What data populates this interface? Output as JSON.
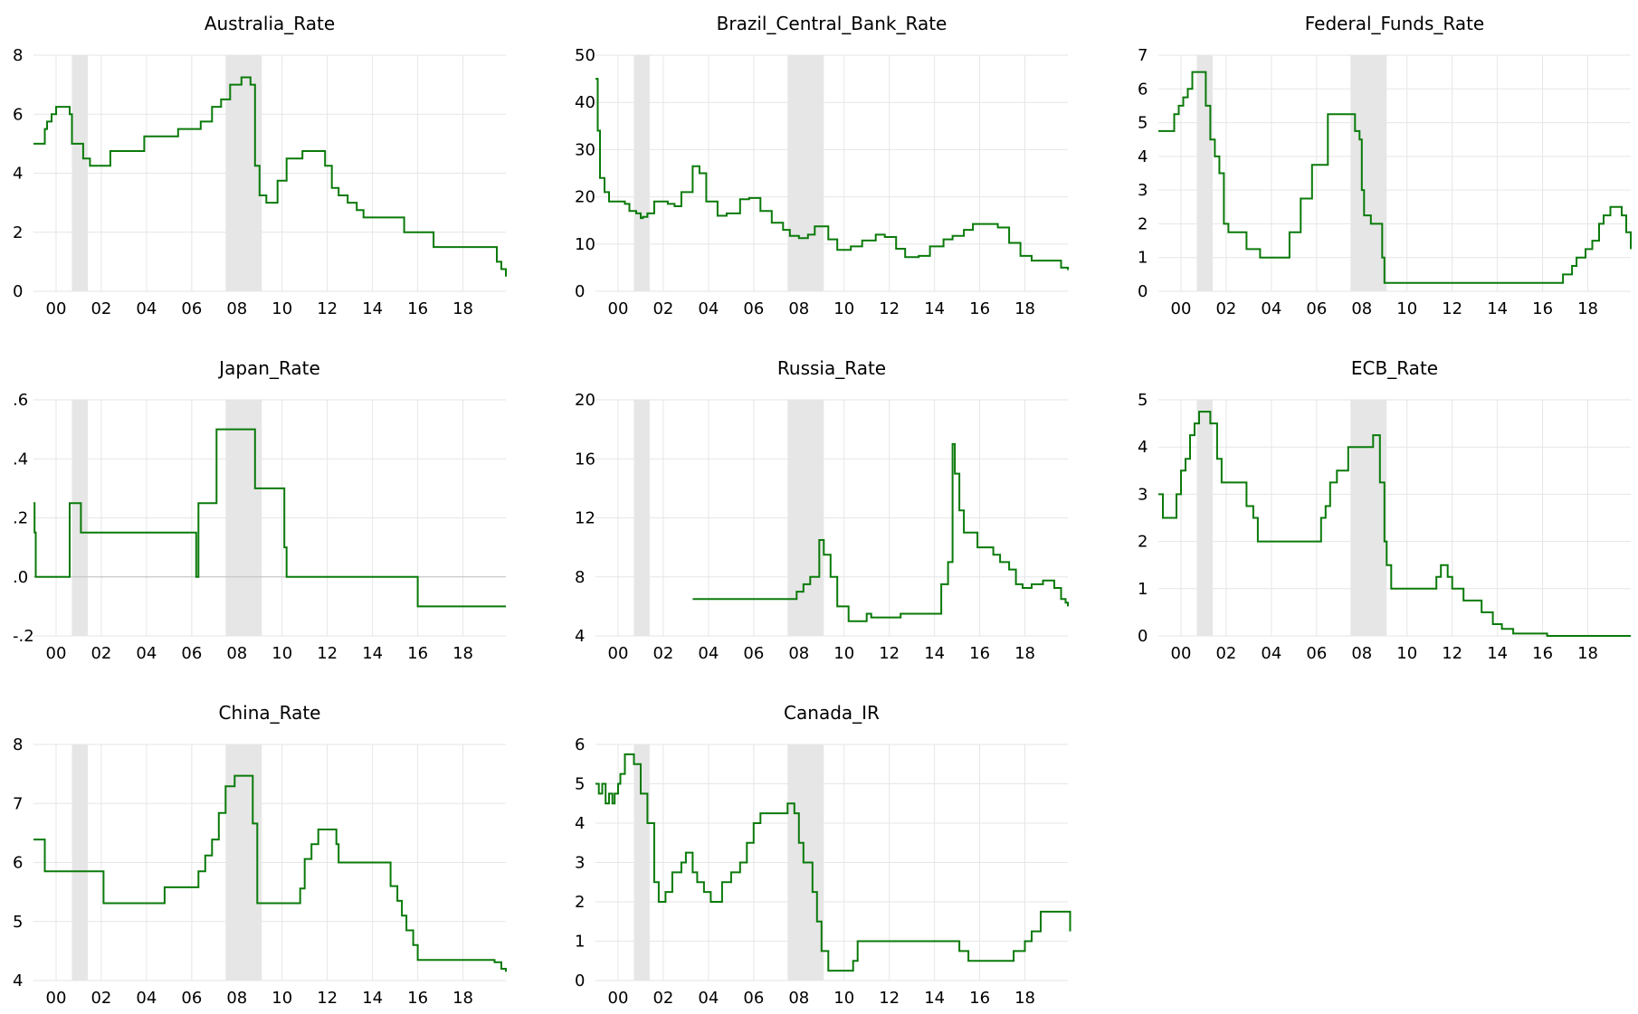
{
  "chart_data": [
    {
      "type": "line",
      "title": "Australia_Rate",
      "xlabel": "",
      "ylabel": "",
      "xlim": [
        1999.0,
        2019.9
      ],
      "ylim": [
        0,
        8
      ],
      "yticks": [
        0,
        2,
        4,
        6,
        8
      ],
      "ytick_labels": [
        "0",
        "2",
        "4",
        "6",
        "8"
      ],
      "xticks": [
        2000,
        2002,
        2004,
        2006,
        2008,
        2010,
        2012,
        2014,
        2016,
        2018
      ],
      "xtick_labels": [
        "00",
        "02",
        "04",
        "06",
        "08",
        "10",
        "12",
        "14",
        "16",
        "18"
      ],
      "recessions": [
        [
          2000.7,
          2001.4
        ],
        [
          2007.5,
          2009.1
        ]
      ],
      "series": [
        {
          "x": [
            1999.0,
            1999.5,
            1999.6,
            1999.8,
            2000.0,
            2000.4,
            2000.6,
            2000.7,
            2001.0,
            2001.2,
            2001.5,
            2001.7,
            2002.4,
            2002.6,
            2003.6,
            2003.9,
            2005.2,
            2005.4,
            2005.9,
            2006.4,
            2006.9,
            2007.3,
            2007.7,
            2008.2,
            2008.6,
            2008.8,
            2009.0,
            2009.3,
            2009.8,
            2010.2,
            2010.9,
            2011.6,
            2011.9,
            2012.2,
            2012.5,
            2012.9,
            2013.3,
            2013.6,
            2015.1,
            2015.4,
            2016.4,
            2016.7,
            2019.3,
            2019.5,
            2019.7,
            2019.9
          ],
          "y": [
            5.0,
            5.5,
            5.75,
            6.0,
            6.25,
            6.25,
            6.0,
            5.0,
            5.0,
            4.5,
            4.25,
            4.25,
            4.75,
            4.75,
            4.75,
            5.25,
            5.25,
            5.5,
            5.5,
            5.75,
            6.25,
            6.5,
            7.0,
            7.25,
            7.0,
            4.25,
            3.25,
            3.0,
            3.75,
            4.5,
            4.75,
            4.75,
            4.25,
            3.5,
            3.25,
            3.0,
            2.75,
            2.5,
            2.5,
            2.0,
            2.0,
            1.5,
            1.5,
            1.0,
            0.75,
            0.5
          ]
        }
      ]
    },
    {
      "type": "line",
      "title": "Brazil_Central_Bank_Rate",
      "xlabel": "",
      "ylabel": "",
      "xlim": [
        1999.0,
        2019.9
      ],
      "ylim": [
        0,
        50
      ],
      "yticks": [
        0,
        10,
        20,
        30,
        40,
        50
      ],
      "ytick_labels": [
        "0",
        "10",
        "20",
        "30",
        "40",
        "50"
      ],
      "xticks": [
        2000,
        2002,
        2004,
        2006,
        2008,
        2010,
        2012,
        2014,
        2016,
        2018
      ],
      "xtick_labels": [
        "00",
        "02",
        "04",
        "06",
        "08",
        "10",
        "12",
        "14",
        "16",
        "18"
      ],
      "recessions": [
        [
          2000.7,
          2001.4
        ],
        [
          2007.5,
          2009.1
        ]
      ],
      "series": [
        {
          "x": [
            1999.0,
            1999.1,
            1999.2,
            1999.4,
            1999.6,
            2000.3,
            2000.5,
            2000.8,
            2001.0,
            2001.1,
            2001.3,
            2001.6,
            2001.9,
            2002.2,
            2002.5,
            2002.8,
            2003.3,
            2003.6,
            2003.9,
            2004.4,
            2004.8,
            2005.4,
            2005.8,
            2006.3,
            2006.8,
            2007.3,
            2007.6,
            2008.0,
            2008.4,
            2008.7,
            2009.0,
            2009.3,
            2009.7,
            2010.3,
            2010.8,
            2011.4,
            2011.8,
            2012.3,
            2012.7,
            2013.3,
            2013.8,
            2014.4,
            2014.8,
            2015.3,
            2015.7,
            2016.4,
            2016.8,
            2017.3,
            2017.8,
            2018.3,
            2019.3,
            2019.6,
            2019.9
          ],
          "y": [
            45.0,
            34.0,
            24.0,
            21.0,
            19.0,
            18.5,
            17.0,
            16.5,
            15.5,
            15.75,
            16.5,
            19.0,
            19.0,
            18.5,
            18.0,
            21.0,
            26.5,
            25.0,
            19.0,
            16.0,
            16.5,
            19.5,
            19.75,
            17.0,
            14.5,
            13.0,
            11.75,
            11.25,
            12.0,
            13.75,
            13.75,
            11.0,
            8.75,
            9.5,
            10.75,
            12.0,
            11.5,
            9.0,
            7.25,
            7.5,
            9.5,
            11.0,
            11.75,
            13.0,
            14.25,
            14.25,
            13.5,
            10.25,
            7.5,
            6.5,
            6.5,
            5.0,
            4.5
          ]
        }
      ]
    },
    {
      "type": "line",
      "title": "Federal_Funds_Rate",
      "xlabel": "",
      "ylabel": "",
      "xlim": [
        1999.0,
        2019.9
      ],
      "ylim": [
        0,
        7
      ],
      "yticks": [
        0,
        1,
        2,
        3,
        4,
        5,
        6,
        7
      ],
      "ytick_labels": [
        "0",
        "1",
        "2",
        "3",
        "4",
        "5",
        "6",
        "7"
      ],
      "xticks": [
        2000,
        2002,
        2004,
        2006,
        2008,
        2010,
        2012,
        2014,
        2016,
        2018
      ],
      "xtick_labels": [
        "00",
        "02",
        "04",
        "06",
        "08",
        "10",
        "12",
        "14",
        "16",
        "18"
      ],
      "recessions": [
        [
          2000.7,
          2001.4
        ],
        [
          2007.5,
          2009.1
        ]
      ],
      "series": [
        {
          "x": [
            1999.0,
            1999.5,
            1999.7,
            1999.9,
            2000.1,
            2000.3,
            2000.5,
            2001.0,
            2001.1,
            2001.3,
            2001.5,
            2001.7,
            2001.9,
            2002.1,
            2002.9,
            2003.5,
            2004.5,
            2004.8,
            2005.3,
            2005.8,
            2006.5,
            2007.5,
            2007.7,
            2007.9,
            2008.0,
            2008.1,
            2008.4,
            2008.9,
            2009.0,
            2015.9,
            2016.9,
            2017.3,
            2017.5,
            2017.9,
            2018.2,
            2018.5,
            2018.7,
            2019.0,
            2019.5,
            2019.7,
            2019.9
          ],
          "y": [
            4.75,
            4.75,
            5.25,
            5.5,
            5.75,
            6.0,
            6.5,
            6.5,
            5.5,
            4.5,
            4.0,
            3.5,
            2.0,
            1.75,
            1.25,
            1.0,
            1.0,
            1.75,
            2.75,
            3.75,
            5.25,
            5.25,
            4.75,
            4.5,
            3.0,
            2.25,
            2.0,
            1.0,
            0.25,
            0.25,
            0.5,
            0.75,
            1.0,
            1.25,
            1.5,
            2.0,
            2.25,
            2.5,
            2.25,
            1.75,
            1.25
          ]
        }
      ]
    },
    {
      "type": "line",
      "title": "Japan_Rate",
      "xlabel": "",
      "ylabel": "",
      "xlim": [
        1999.0,
        2019.9
      ],
      "ylim": [
        -0.2,
        0.6
      ],
      "yticks": [
        -0.2,
        0,
        0.2,
        0.4,
        0.6
      ],
      "ytick_labels": [
        "-.2",
        ".0",
        ".2",
        ".4",
        ".6"
      ],
      "xticks": [
        2000,
        2002,
        2004,
        2006,
        2008,
        2010,
        2012,
        2014,
        2016,
        2018
      ],
      "xtick_labels": [
        "00",
        "02",
        "04",
        "06",
        "08",
        "10",
        "12",
        "14",
        "16",
        "18"
      ],
      "recessions": [
        [
          2000.7,
          2001.4
        ],
        [
          2007.5,
          2009.1
        ]
      ],
      "series": [
        {
          "x": [
            1999.0,
            1999.05,
            1999.1,
            2000.6,
            2000.6,
            2001.1,
            2001.1,
            2006.2,
            2006.3,
            2006.9,
            2007.1,
            2008.6,
            2008.8,
            2010.1,
            2010.2,
            2015.9,
            2016.0,
            2019.9
          ],
          "y": [
            0.25,
            0.15,
            0.0,
            0.0,
            0.25,
            0.25,
            0.15,
            0.0,
            0.25,
            0.25,
            0.5,
            0.5,
            0.3,
            0.1,
            0.0,
            0.0,
            -0.1,
            -0.1
          ]
        }
      ]
    },
    {
      "type": "line",
      "title": "Russia_Rate",
      "xlabel": "",
      "ylabel": "",
      "xlim": [
        1999.0,
        2019.9
      ],
      "ylim": [
        4,
        20
      ],
      "yticks": [
        4,
        8,
        12,
        16,
        20
      ],
      "ytick_labels": [
        "4",
        "8",
        "12",
        "16",
        "20"
      ],
      "xticks": [
        2000,
        2002,
        2004,
        2006,
        2008,
        2010,
        2012,
        2014,
        2016,
        2018
      ],
      "xtick_labels": [
        "00",
        "02",
        "04",
        "06",
        "08",
        "10",
        "12",
        "14",
        "16",
        "18"
      ],
      "recessions": [
        [
          2000.7,
          2001.4
        ],
        [
          2007.5,
          2009.1
        ]
      ],
      "series": [
        {
          "x": [
            2003.3,
            2007.5,
            2007.9,
            2008.2,
            2008.5,
            2008.9,
            2009.1,
            2009.4,
            2009.7,
            2010.2,
            2010.8,
            2011.0,
            2011.2,
            2012.5,
            2012.7,
            2014.1,
            2014.3,
            2014.6,
            2014.8,
            2014.9,
            2015.1,
            2015.3,
            2015.6,
            2015.9,
            2016.3,
            2016.6,
            2016.9,
            2017.3,
            2017.6,
            2017.9,
            2018.3,
            2018.8,
            2019.3,
            2019.6,
            2019.8,
            2019.9
          ],
          "y": [
            6.5,
            6.5,
            7.0,
            7.5,
            8.0,
            10.5,
            9.5,
            8.0,
            6.0,
            5.0,
            5.0,
            5.5,
            5.25,
            5.5,
            5.5,
            5.5,
            7.5,
            9.0,
            17.0,
            15.0,
            12.5,
            11.0,
            11.0,
            10.0,
            10.0,
            9.5,
            9.0,
            8.5,
            7.5,
            7.25,
            7.5,
            7.75,
            7.25,
            6.5,
            6.25,
            6.0
          ]
        }
      ]
    },
    {
      "type": "line",
      "title": "ECB_Rate",
      "xlabel": "",
      "ylabel": "",
      "xlim": [
        1999.0,
        2019.9
      ],
      "ylim": [
        0,
        5
      ],
      "yticks": [
        0,
        1,
        2,
        3,
        4,
        5
      ],
      "ytick_labels": [
        "0",
        "1",
        "2",
        "3",
        "4",
        "5"
      ],
      "xticks": [
        2000,
        2002,
        2004,
        2006,
        2008,
        2010,
        2012,
        2014,
        2016,
        2018
      ],
      "xtick_labels": [
        "00",
        "02",
        "04",
        "06",
        "08",
        "10",
        "12",
        "14",
        "16",
        "18"
      ],
      "recessions": [
        [
          2000.7,
          2001.4
        ],
        [
          2007.5,
          2009.1
        ]
      ],
      "series": [
        {
          "x": [
            1999.0,
            1999.2,
            1999.8,
            2000.0,
            2000.2,
            2000.4,
            2000.6,
            2000.8,
            2001.0,
            2001.3,
            2001.6,
            2001.8,
            2002.9,
            2003.2,
            2003.4,
            2005.9,
            2006.2,
            2006.4,
            2006.6,
            2006.9,
            2007.4,
            2008.5,
            2008.8,
            2009.0,
            2009.1,
            2009.3,
            2011.3,
            2011.5,
            2011.8,
            2012.0,
            2012.5,
            2013.3,
            2013.8,
            2014.2,
            2014.7,
            2016.2,
            2019.9
          ],
          "y": [
            3.0,
            2.5,
            3.0,
            3.5,
            3.75,
            4.25,
            4.5,
            4.75,
            4.75,
            4.5,
            3.75,
            3.25,
            2.75,
            2.5,
            2.0,
            2.0,
            2.5,
            2.75,
            3.25,
            3.5,
            4.0,
            4.25,
            3.25,
            2.0,
            1.5,
            1.0,
            1.25,
            1.5,
            1.25,
            1.0,
            0.75,
            0.5,
            0.25,
            0.15,
            0.05,
            0.0,
            0.0
          ]
        }
      ]
    },
    {
      "type": "line",
      "title": "China_Rate",
      "xlabel": "",
      "ylabel": "",
      "xlim": [
        1999.0,
        2019.9
      ],
      "ylim": [
        4,
        8
      ],
      "yticks": [
        4,
        5,
        6,
        7,
        8
      ],
      "ytick_labels": [
        "4",
        "5",
        "6",
        "7",
        "8"
      ],
      "xticks": [
        2000,
        2002,
        2004,
        2006,
        2008,
        2010,
        2012,
        2014,
        2016,
        2018
      ],
      "xtick_labels": [
        "00",
        "02",
        "04",
        "06",
        "08",
        "10",
        "12",
        "14",
        "16",
        "18"
      ],
      "recessions": [
        [
          2000.7,
          2001.4
        ],
        [
          2007.5,
          2009.1
        ]
      ],
      "series": [
        {
          "x": [
            1999.0,
            1999.3,
            1999.5,
            2001.5,
            2002.1,
            2004.8,
            2006.3,
            2006.6,
            2006.9,
            2007.2,
            2007.5,
            2007.9,
            2008.7,
            2008.9,
            2010.8,
            2011.0,
            2011.3,
            2011.6,
            2012.4,
            2012.5,
            2014.8,
            2015.1,
            2015.3,
            2015.5,
            2015.8,
            2016.0,
            2017.0,
            2019.1,
            2019.4,
            2019.7,
            2019.9
          ],
          "y": [
            6.39,
            6.39,
            5.85,
            5.85,
            5.31,
            5.58,
            5.85,
            6.12,
            6.39,
            6.84,
            7.29,
            7.47,
            6.66,
            5.31,
            5.56,
            6.06,
            6.31,
            6.56,
            6.31,
            6.0,
            5.6,
            5.35,
            5.1,
            4.85,
            4.6,
            4.35,
            4.35,
            4.35,
            4.31,
            4.2,
            4.15
          ]
        }
      ]
    },
    {
      "type": "line",
      "title": "Canada_IR",
      "xlabel": "",
      "ylabel": "",
      "xlim": [
        1999.0,
        2019.9
      ],
      "ylim": [
        0,
        6
      ],
      "yticks": [
        0,
        1,
        2,
        3,
        4,
        5,
        6
      ],
      "ytick_labels": [
        "0",
        "1",
        "2",
        "3",
        "4",
        "5",
        "6"
      ],
      "xticks": [
        2000,
        2002,
        2004,
        2006,
        2008,
        2010,
        2012,
        2014,
        2016,
        2018
      ],
      "xtick_labels": [
        "00",
        "02",
        "04",
        "06",
        "08",
        "10",
        "12",
        "14",
        "16",
        "18"
      ],
      "recessions": [
        [
          2000.7,
          2001.4
        ],
        [
          2007.5,
          2009.1
        ]
      ],
      "series": [
        {
          "x": [
            1999.0,
            1999.15,
            1999.3,
            1999.45,
            1999.6,
            1999.75,
            1999.85,
            2000.0,
            2000.1,
            2000.3,
            2000.5,
            2000.7,
            2001.0,
            2001.3,
            2001.6,
            2001.8,
            2002.1,
            2002.4,
            2002.8,
            2003.0,
            2003.3,
            2003.5,
            2003.8,
            2004.1,
            2004.6,
            2005.0,
            2005.4,
            2005.7,
            2006.0,
            2006.3,
            2007.3,
            2007.5,
            2007.8,
            2008.0,
            2008.2,
            2008.6,
            2008.8,
            2009.0,
            2009.3,
            2010.2,
            2010.4,
            2010.6,
            2014.8,
            2015.1,
            2015.5,
            2017.2,
            2017.5,
            2018.0,
            2018.3,
            2018.7,
            2019.9,
            2020.0
          ],
          "y": [
            5.0,
            4.75,
            5.0,
            4.5,
            4.75,
            4.5,
            4.75,
            5.0,
            5.25,
            5.75,
            5.75,
            5.5,
            4.75,
            4.0,
            2.5,
            2.0,
            2.25,
            2.75,
            3.0,
            3.25,
            2.75,
            2.5,
            2.25,
            2.0,
            2.5,
            2.75,
            3.0,
            3.5,
            4.0,
            4.25,
            4.25,
            4.5,
            4.25,
            3.5,
            3.0,
            2.25,
            1.5,
            0.75,
            0.25,
            0.25,
            0.5,
            1.0,
            1.0,
            0.75,
            0.5,
            0.5,
            0.75,
            1.0,
            1.25,
            1.75,
            1.75,
            1.25
          ]
        }
      ]
    }
  ]
}
